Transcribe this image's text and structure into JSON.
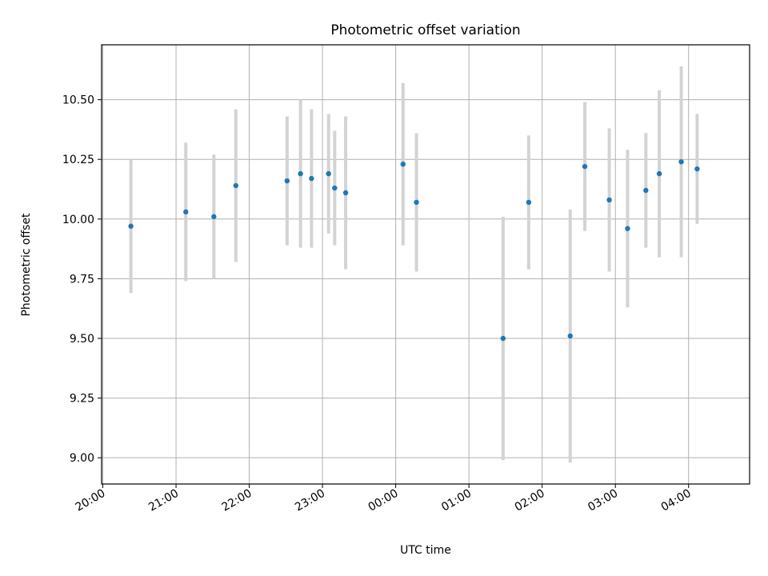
{
  "chart_data": {
    "type": "scatter",
    "title": "Photometric offset variation",
    "xlabel": "UTC time",
    "ylabel": "Photometric offset",
    "x_unit": "UTC hh:mm",
    "xlim": [
      "19:59",
      "04:50"
    ],
    "ylim": [
      8.89,
      10.73
    ],
    "grid": true,
    "x_ticks": [
      "20:00",
      "21:00",
      "22:00",
      "23:00",
      "00:00",
      "01:00",
      "02:00",
      "03:00",
      "04:00"
    ],
    "y_ticks": [
      "9.00",
      "9.25",
      "9.50",
      "9.75",
      "10.00",
      "10.25",
      "10.50"
    ],
    "y_tick_values": [
      9.0,
      9.25,
      9.5,
      9.75,
      10.0,
      10.25,
      10.5
    ],
    "marker_color": "#1f77b4",
    "errorbar_color": "#d3d3d3",
    "points": [
      {
        "time": "20:23",
        "y": 9.97,
        "err": 0.28
      },
      {
        "time": "21:08",
        "y": 10.03,
        "err": 0.29
      },
      {
        "time": "21:31",
        "y": 10.01,
        "err": 0.26
      },
      {
        "time": "21:49",
        "y": 10.14,
        "err": 0.32
      },
      {
        "time": "22:31",
        "y": 10.16,
        "err": 0.27
      },
      {
        "time": "22:42",
        "y": 10.19,
        "err": 0.31
      },
      {
        "time": "22:51",
        "y": 10.17,
        "err": 0.29
      },
      {
        "time": "23:05",
        "y": 10.19,
        "err": 0.25
      },
      {
        "time": "23:10",
        "y": 10.13,
        "err": 0.24
      },
      {
        "time": "23:19",
        "y": 10.11,
        "err": 0.32
      },
      {
        "time": "00:06",
        "y": 10.23,
        "err": 0.34
      },
      {
        "time": "00:17",
        "y": 10.07,
        "err": 0.29
      },
      {
        "time": "01:28",
        "y": 9.5,
        "err": 0.51
      },
      {
        "time": "01:49",
        "y": 10.07,
        "err": 0.28
      },
      {
        "time": "02:23",
        "y": 9.51,
        "err": 0.53
      },
      {
        "time": "02:35",
        "y": 10.22,
        "err": 0.27
      },
      {
        "time": "02:55",
        "y": 10.08,
        "err": 0.3
      },
      {
        "time": "03:10",
        "y": 9.96,
        "err": 0.33
      },
      {
        "time": "03:25",
        "y": 10.12,
        "err": 0.24
      },
      {
        "time": "03:36",
        "y": 10.19,
        "err": 0.35
      },
      {
        "time": "03:54",
        "y": 10.24,
        "err": 0.4
      },
      {
        "time": "04:07",
        "y": 10.21,
        "err": 0.23
      }
    ]
  }
}
